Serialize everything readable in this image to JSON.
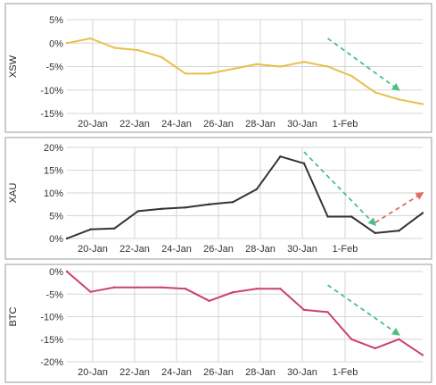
{
  "chart_data": [
    {
      "type": "line",
      "ylabel": "XSW",
      "ylim": [
        -15,
        5
      ],
      "yticks": [
        5,
        0,
        -5,
        -10,
        -15
      ],
      "tick_format": "{v}%",
      "x_tick_labels": [
        "20-Jan",
        "22-Jan",
        "24-Jan",
        "26-Jan",
        "28-Jan",
        "30-Jan",
        "1-Feb"
      ],
      "color": "#e8bf4c",
      "x": [
        "19-Jan",
        "20-Jan",
        "21-Jan",
        "22-Jan",
        "23-Jan",
        "24-Jan",
        "25-Jan",
        "26-Jan",
        "27-Jan",
        "28-Jan",
        "29-Jan",
        "30-Jan",
        "31-Jan",
        "1-Feb",
        "2-Feb",
        "3-Feb"
      ],
      "values": [
        0,
        1,
        -1,
        -1.5,
        -3,
        -6.5,
        -6.5,
        -5.5,
        -4.5,
        -5,
        -4,
        -5,
        -7,
        -10.5,
        -12,
        -13
      ],
      "trend_arrows": [
        {
          "color": "#4cbf84",
          "direction": "down",
          "from": [
            "30-Jan",
            1
          ],
          "to": [
            "2-Feb",
            -10
          ]
        }
      ]
    },
    {
      "type": "line",
      "ylabel": "XAU",
      "ylim": [
        0,
        20
      ],
      "yticks": [
        20,
        15,
        10,
        5,
        0
      ],
      "tick_format": "{v}%",
      "x_tick_labels": [
        "20-Jan",
        "22-Jan",
        "24-Jan",
        "26-Jan",
        "28-Jan",
        "30-Jan",
        "1-Feb"
      ],
      "color": "#333333",
      "x": [
        "19-Jan",
        "20-Jan",
        "21-Jan",
        "22-Jan",
        "23-Jan",
        "24-Jan",
        "25-Jan",
        "26-Jan",
        "27-Jan",
        "28-Jan",
        "29-Jan",
        "30-Jan",
        "31-Jan",
        "1-Feb",
        "2-Feb",
        "3-Feb"
      ],
      "values": [
        0,
        2,
        2.2,
        6,
        6.5,
        6.8,
        7.5,
        8,
        10.8,
        18,
        16.5,
        4.8,
        4.8,
        1.2,
        1.7,
        5.6
      ],
      "trend_arrows": [
        {
          "color": "#4cbf84",
          "direction": "down",
          "from": [
            "29-Jan",
            19
          ],
          "to": [
            "1-Feb",
            3
          ]
        },
        {
          "color": "#e36a66",
          "direction": "up",
          "from": [
            "1-Feb",
            3.5
          ],
          "to": [
            "3-Feb",
            10
          ]
        }
      ]
    },
    {
      "type": "line",
      "ylabel": "BTC",
      "ylim": [
        -20,
        0
      ],
      "yticks": [
        0,
        -5,
        -10,
        -15,
        -20
      ],
      "tick_format": "{v}%",
      "x_tick_labels": [
        "20-Jan",
        "22-Jan",
        "24-Jan",
        "26-Jan",
        "28-Jan",
        "30-Jan",
        "1-Feb"
      ],
      "color": "#c94368",
      "x": [
        "19-Jan",
        "20-Jan",
        "21-Jan",
        "22-Jan",
        "23-Jan",
        "24-Jan",
        "25-Jan",
        "26-Jan",
        "27-Jan",
        "28-Jan",
        "29-Jan",
        "30-Jan",
        "31-Jan",
        "1-Feb",
        "2-Feb",
        "3-Feb"
      ],
      "values": [
        0,
        -4.5,
        -3.5,
        -3.5,
        -3.5,
        -3.8,
        -6.5,
        -4.6,
        -3.8,
        -3.8,
        -8.5,
        -9,
        -15,
        -17,
        -15,
        -18.5
      ],
      "trend_arrows": [
        {
          "color": "#4cbf84",
          "direction": "down",
          "from": [
            "30-Jan",
            -3
          ],
          "to": [
            "2-Feb",
            -14
          ]
        }
      ]
    }
  ]
}
